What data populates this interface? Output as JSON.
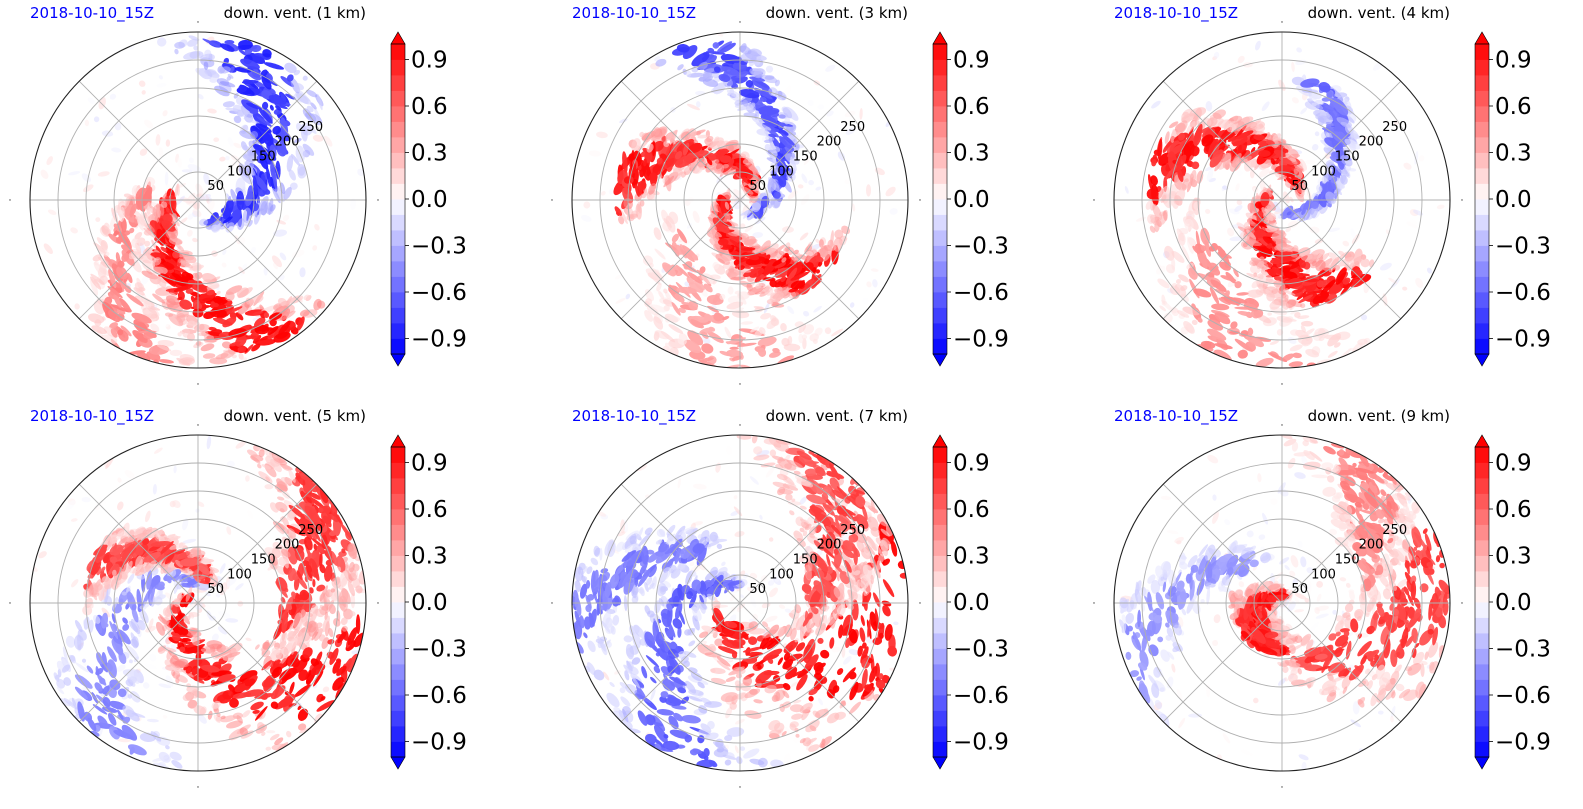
{
  "chart_data": [
    {
      "type": "heatmap",
      "date": "2018-10-10_15Z",
      "title": "down. vent. (1 km)",
      "projection": "polar",
      "radial_ticks": [
        "50",
        "100",
        "150",
        "200",
        "250"
      ],
      "radial_max": 300,
      "grid": true,
      "colorbar": {
        "ticks": [
          "0.9",
          "0.6",
          "0.3",
          "0.0",
          "−0.3",
          "−0.6",
          "−0.9"
        ],
        "values": [
          0.9,
          0.6,
          0.3,
          0.0,
          -0.3,
          -0.6,
          -0.9
        ],
        "range": [
          -1,
          1
        ],
        "extend": "both",
        "colormap": "bwr"
      },
      "pattern": {
        "seed": 11,
        "red_arms": [
          {
            "phase": 2.3,
            "rmin": 40,
            "rmax": 290,
            "width": 0.45,
            "intensity": 1.0
          },
          {
            "phase": 1.4,
            "rmin": 80,
            "rmax": 300,
            "width": 0.35,
            "intensity": 0.5
          }
        ],
        "blue_arms": [
          {
            "phase": 4.6,
            "rmin": 40,
            "rmax": 290,
            "width": 0.55,
            "intensity": 0.85
          }
        ]
      }
    },
    {
      "type": "heatmap",
      "date": "2018-10-10_15Z",
      "title": "down. vent. (3 km)",
      "projection": "polar",
      "radial_ticks": [
        "50",
        "100",
        "150",
        "200",
        "250"
      ],
      "radial_max": 300,
      "grid": true,
      "colorbar": {
        "ticks": [
          "0.9",
          "0.6",
          "0.3",
          "0.0",
          "−0.3",
          "−0.6",
          "−0.9"
        ],
        "values": [
          0.9,
          0.6,
          0.3,
          0.0,
          -0.3,
          -0.6,
          -0.9
        ],
        "range": [
          -1,
          1
        ],
        "extend": "both",
        "colormap": "bwr"
      },
      "pattern": {
        "seed": 23,
        "red_arms": [
          {
            "phase": 3.0,
            "rmin": 20,
            "rmax": 200,
            "width": 0.5,
            "intensity": 1.0
          },
          {
            "phase": 0.4,
            "rmin": 20,
            "rmax": 220,
            "width": 0.45,
            "intensity": 0.95
          },
          {
            "phase": 1.8,
            "rmin": 120,
            "rmax": 300,
            "width": 0.6,
            "intensity": 0.4
          }
        ],
        "blue_arms": [
          {
            "phase": 5.2,
            "rmin": 20,
            "rmax": 290,
            "width": 0.3,
            "intensity": 0.75
          }
        ]
      }
    },
    {
      "type": "heatmap",
      "date": "2018-10-10_15Z",
      "title": "down. vent. (4 km)",
      "projection": "polar",
      "radial_ticks": [
        "50",
        "100",
        "150",
        "200",
        "250"
      ],
      "radial_max": 300,
      "grid": true,
      "colorbar": {
        "ticks": [
          "0.9",
          "0.6",
          "0.3",
          "0.0",
          "−0.3",
          "−0.6",
          "−0.9"
        ],
        "values": [
          0.9,
          0.6,
          0.3,
          0.0,
          -0.3,
          -0.6,
          -0.9
        ],
        "range": [
          -1,
          1
        ],
        "extend": "both",
        "colormap": "bwr"
      },
      "pattern": {
        "seed": 37,
        "red_arms": [
          {
            "phase": 2.8,
            "rmin": 20,
            "rmax": 200,
            "width": 0.6,
            "intensity": 1.0
          },
          {
            "phase": 0.2,
            "rmin": 30,
            "rmax": 240,
            "width": 0.5,
            "intensity": 0.95
          },
          {
            "phase": 1.6,
            "rmin": 140,
            "rmax": 300,
            "width": 0.7,
            "intensity": 0.45
          }
        ],
        "blue_arms": [
          {
            "phase": 4.9,
            "rmin": 20,
            "rmax": 220,
            "width": 0.25,
            "intensity": 0.6
          }
        ]
      }
    },
    {
      "type": "heatmap",
      "date": "2018-10-10_15Z",
      "title": "down. vent. (5 km)",
      "projection": "polar",
      "radial_ticks": [
        "50",
        "100",
        "150",
        "200",
        "250"
      ],
      "radial_max": 300,
      "grid": true,
      "colorbar": {
        "ticks": [
          "0.9",
          "0.6",
          "0.3",
          "0.0",
          "−0.3",
          "−0.6",
          "−0.9"
        ],
        "values": [
          0.9,
          0.6,
          0.3,
          0.0,
          -0.3,
          -0.6,
          -0.9
        ],
        "range": [
          -1,
          1
        ],
        "extend": "both",
        "colormap": "bwr"
      },
      "pattern": {
        "seed": 41,
        "red_arms": [
          {
            "phase": 2.9,
            "rmin": 20,
            "rmax": 300,
            "width": 0.7,
            "intensity": 1.0
          },
          {
            "phase": 4.0,
            "rmin": 150,
            "rmax": 300,
            "width": 0.6,
            "intensity": 0.85
          },
          {
            "phase": 0.3,
            "rmin": 40,
            "rmax": 200,
            "width": 0.4,
            "intensity": 0.8
          }
        ],
        "blue_arms": [
          {
            "phase": 1.2,
            "rmin": 30,
            "rmax": 300,
            "width": 0.5,
            "intensity": 0.5
          }
        ]
      }
    },
    {
      "type": "heatmap",
      "date": "2018-10-10_15Z",
      "title": "down. vent. (7 km)",
      "projection": "polar",
      "radial_ticks": [
        "50",
        "100",
        "150",
        "200",
        "250"
      ],
      "radial_max": 300,
      "grid": true,
      "colorbar": {
        "ticks": [
          "0.9",
          "0.6",
          "0.3",
          "0.0",
          "−0.3",
          "−0.6",
          "−0.9"
        ],
        "values": [
          0.9,
          0.6,
          0.3,
          0.0,
          -0.3,
          -0.6,
          -0.9
        ],
        "range": [
          -1,
          1
        ],
        "extend": "both",
        "colormap": "bwr"
      },
      "pattern": {
        "seed": 53,
        "red_arms": [
          {
            "phase": 3.3,
            "rmin": 40,
            "rmax": 300,
            "width": 1.1,
            "intensity": 1.0
          },
          {
            "phase": 4.3,
            "rmin": 120,
            "rmax": 300,
            "width": 0.6,
            "intensity": 0.75
          }
        ],
        "blue_arms": [
          {
            "phase": 1.4,
            "rmin": 30,
            "rmax": 300,
            "width": 0.6,
            "intensity": 0.65
          },
          {
            "phase": 0.3,
            "rmin": 100,
            "rmax": 300,
            "width": 0.4,
            "intensity": 0.55
          }
        ]
      }
    },
    {
      "type": "heatmap",
      "date": "2018-10-10_15Z",
      "title": "down. vent. (9 km)",
      "projection": "polar",
      "radial_ticks": [
        "50",
        "100",
        "150",
        "200",
        "250"
      ],
      "radial_max": 300,
      "grid": true,
      "colorbar": {
        "ticks": [
          "0.9",
          "0.6",
          "0.3",
          "0.0",
          "−0.3",
          "−0.6",
          "−0.9"
        ],
        "values": [
          0.9,
          0.6,
          0.3,
          0.0,
          -0.3,
          -0.6,
          -0.9
        ],
        "range": [
          -1,
          1
        ],
        "extend": "both",
        "colormap": "bwr"
      },
      "pattern": {
        "seed": 67,
        "red_arms": [
          {
            "phase": 3.5,
            "rmin": 100,
            "rmax": 300,
            "width": 0.8,
            "intensity": 0.8
          },
          {
            "phase": 2.6,
            "rmin": 10,
            "rmax": 90,
            "width": 1.2,
            "intensity": 0.95
          },
          {
            "phase": 4.4,
            "rmin": 150,
            "rmax": 300,
            "width": 0.5,
            "intensity": 0.5
          }
        ],
        "blue_arms": [
          {
            "phase": 0.6,
            "rmin": 80,
            "rmax": 300,
            "width": 0.4,
            "intensity": 0.45
          }
        ]
      }
    }
  ]
}
